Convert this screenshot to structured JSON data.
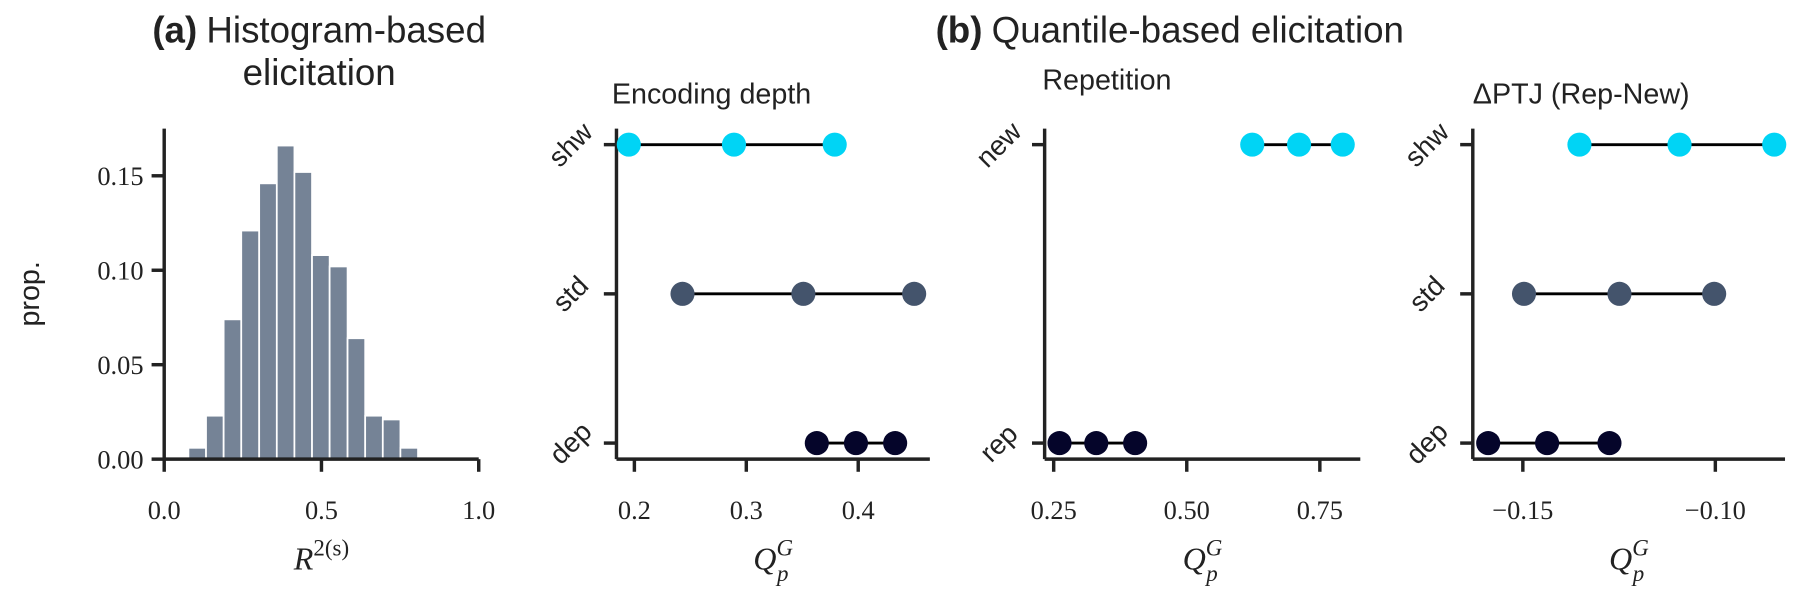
{
  "suptitles": [
    {
      "label": "(a)",
      "title": [
        "Histogram-based",
        "elicitation"
      ]
    },
    {
      "label": "(b)",
      "title": "Quantile-based elicitation"
    }
  ],
  "chart_data": [
    {
      "type": "histogram",
      "ylabel": "prop.",
      "xlabel": {
        "base": "R",
        "sup": "2(s)"
      },
      "bins": [
        0.077,
        0.133,
        0.189,
        0.245,
        0.302,
        0.358,
        0.414,
        0.47,
        0.526,
        0.583,
        0.639,
        0.695,
        0.751,
        0.807
      ],
      "values": [
        0.006,
        0.023,
        0.074,
        0.121,
        0.146,
        0.166,
        0.152,
        0.108,
        0.102,
        0.064,
        0.023,
        0.021,
        0.006
      ],
      "color": "#758396",
      "xlim": [
        0,
        1
      ],
      "ylim": [
        0,
        0.175
      ],
      "xticks": [
        {
          "value": 0,
          "label": "0.0"
        },
        {
          "value": 0.5,
          "label": "0.5"
        },
        {
          "value": 1,
          "label": "1.0"
        }
      ],
      "yticks": [
        {
          "value": 0,
          "label": "0.00"
        },
        {
          "value": 0.05,
          "label": "0.05"
        },
        {
          "value": 0.1,
          "label": "0.10"
        },
        {
          "value": 0.15,
          "label": "0.15"
        }
      ]
    },
    {
      "type": "dot",
      "title": "Encoding depth",
      "xlabel": {
        "base": "Q",
        "sub": "p",
        "sup": "G"
      },
      "categories": [
        "dep",
        "std",
        "shw"
      ],
      "colors": [
        "#05052a",
        "#44546c",
        "#00d4f5"
      ],
      "values": [
        [
          0.363,
          0.398,
          0.433
        ],
        [
          0.243,
          0.351,
          0.45
        ],
        [
          0.195,
          0.289,
          0.379
        ]
      ],
      "xlim": [
        0.184,
        0.464
      ],
      "xticks": [
        0.2,
        0.3,
        0.4
      ]
    },
    {
      "type": "dot",
      "title": "Repetition",
      "xlabel": {
        "base": "Q",
        "sub": "p",
        "sup": "G"
      },
      "categories": [
        "rep",
        "new"
      ],
      "colors": [
        "#05052a",
        "#00d4f5"
      ],
      "values": [
        [
          0.261,
          0.33,
          0.403
        ],
        [
          0.623,
          0.711,
          0.793
        ]
      ],
      "xlim": [
        0.233,
        0.826
      ],
      "xticks": [
        0.25,
        {
          "value": 0.5,
          "label": "0.50"
        },
        0.75
      ]
    },
    {
      "type": "dot",
      "title": "ΔPTJ (Rep-New)",
      "xlabel": {
        "base": "Q",
        "sub": "p",
        "sup": "G"
      },
      "categories": [
        "dep",
        "std",
        "shw"
      ],
      "colors": [
        "#05052a",
        "#44546c",
        "#00d4f5"
      ],
      "values": [
        [
          -0.159,
          -0.1437,
          -0.1275
        ],
        [
          -0.1497,
          -0.1249,
          -0.1003
        ],
        [
          -0.1353,
          -0.1093,
          -0.0847
        ]
      ],
      "xlim": [
        -0.163,
        -0.0819
      ],
      "xticks": [
        {
          "value": -0.15,
          "label": "−0.15"
        },
        {
          "value": -0.1,
          "label": "−0.10"
        }
      ]
    }
  ]
}
